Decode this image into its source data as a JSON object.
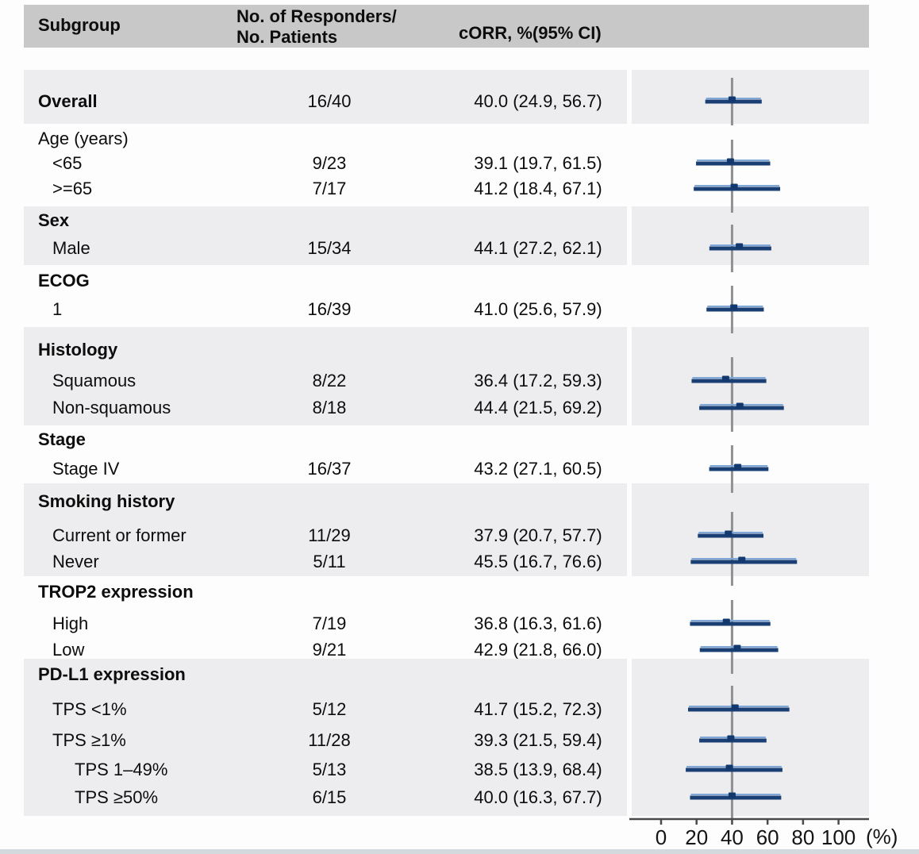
{
  "header": {
    "col_subgroup": "Subgroup",
    "col_responders_line1": "No. of Responders/",
    "col_responders_line2": "No. Patients",
    "col_corr": "cORR, %(95% CI)"
  },
  "axis": {
    "ticks": [
      0,
      20,
      40,
      60,
      80,
      100
    ],
    "unit": "(%)",
    "min": 0,
    "max": 100,
    "ref_value": 40
  },
  "colors": {
    "header_bg": "#c8c8c8",
    "band_bg": "#ededef",
    "ci_bar": "#1a3f74",
    "ci_highlight": "#7fa8d8",
    "marker": "#12386e",
    "ref_line": "#8f9295",
    "axis_line": "#4a4a4a",
    "text": "#0d0d0d"
  },
  "groups": [
    {
      "shaded": true,
      "header": null,
      "rows": [
        {
          "label": "Overall",
          "bold": true,
          "indent": 0,
          "responders": "16/40",
          "corr": "40.0 (24.9, 56.7)",
          "est": 40.0,
          "lo": 24.9,
          "hi": 56.7
        }
      ]
    },
    {
      "shaded": false,
      "header": {
        "label": "Age (years)",
        "bold": false
      },
      "rows": [
        {
          "label": "<65",
          "indent": 1,
          "responders": "9/23",
          "corr": "39.1 (19.7, 61.5)",
          "est": 39.1,
          "lo": 19.7,
          "hi": 61.5
        },
        {
          "label": ">=65",
          "indent": 1,
          "responders": "7/17",
          "corr": "41.2 (18.4, 67.1)",
          "est": 41.2,
          "lo": 18.4,
          "hi": 67.1
        }
      ]
    },
    {
      "shaded": true,
      "header": {
        "label": "Sex",
        "bold": true
      },
      "rows": [
        {
          "label": "Male",
          "indent": 1,
          "responders": "15/34",
          "corr": "44.1 (27.2, 62.1)",
          "est": 44.1,
          "lo": 27.2,
          "hi": 62.1
        }
      ]
    },
    {
      "shaded": false,
      "header": {
        "label": "ECOG",
        "bold": true
      },
      "rows": [
        {
          "label": "1",
          "indent": 1,
          "responders": "16/39",
          "corr": "41.0 (25.6, 57.9)",
          "est": 41.0,
          "lo": 25.6,
          "hi": 57.9
        }
      ]
    },
    {
      "shaded": true,
      "header": {
        "label": "Histology",
        "bold": true
      },
      "rows": [
        {
          "label": "Squamous",
          "indent": 1,
          "responders": "8/22",
          "corr": "36.4 (17.2, 59.3)",
          "est": 36.4,
          "lo": 17.2,
          "hi": 59.3
        },
        {
          "label": "Non-squamous",
          "indent": 1,
          "responders": "8/18",
          "corr": "44.4 (21.5, 69.2)",
          "est": 44.4,
          "lo": 21.5,
          "hi": 69.2
        }
      ]
    },
    {
      "shaded": false,
      "header": {
        "label": "Stage",
        "bold": true
      },
      "rows": [
        {
          "label": "Stage IV",
          "indent": 1,
          "responders": "16/37",
          "corr": "43.2 (27.1, 60.5)",
          "est": 43.2,
          "lo": 27.1,
          "hi": 60.5
        }
      ]
    },
    {
      "shaded": true,
      "header": {
        "label": "Smoking history",
        "bold": true
      },
      "rows": [
        {
          "label": "Current or former",
          "indent": 1,
          "responders": "11/29",
          "corr": "37.9 (20.7, 57.7)",
          "est": 37.9,
          "lo": 20.7,
          "hi": 57.7
        },
        {
          "label": "Never",
          "indent": 1,
          "responders": "5/11",
          "corr": "45.5 (16.7, 76.6)",
          "est": 45.5,
          "lo": 16.7,
          "hi": 76.6
        }
      ]
    },
    {
      "shaded": false,
      "header": {
        "label": "TROP2 expression",
        "bold": true
      },
      "rows": [
        {
          "label": "High",
          "indent": 1,
          "responders": "7/19",
          "corr": "36.8 (16.3, 61.6)",
          "est": 36.8,
          "lo": 16.3,
          "hi": 61.6
        },
        {
          "label": "Low",
          "indent": 1,
          "responders": "9/21",
          "corr": "42.9 (21.8, 66.0)",
          "est": 42.9,
          "lo": 21.8,
          "hi": 66.0
        }
      ]
    },
    {
      "shaded": true,
      "header": {
        "label": "PD-L1 expression",
        "bold": true
      },
      "rows": [
        {
          "label": "TPS <1%",
          "indent": 1,
          "responders": "5/12",
          "corr": "41.7 (15.2, 72.3)",
          "est": 41.7,
          "lo": 15.2,
          "hi": 72.3
        },
        {
          "label": "TPS ≥1%",
          "indent": 1,
          "responders": "11/28",
          "corr": "39.3 (21.5, 59.4)",
          "est": 39.3,
          "lo": 21.5,
          "hi": 59.4
        },
        {
          "label": "TPS 1–49%",
          "indent": 2,
          "responders": "5/13",
          "corr": "38.5 (13.9, 68.4)",
          "est": 38.5,
          "lo": 13.9,
          "hi": 68.4
        },
        {
          "label": "TPS ≥50%",
          "indent": 2,
          "responders": "6/15",
          "corr": "40.0 (16.3, 67.7)",
          "est": 40.0,
          "lo": 16.3,
          "hi": 67.7
        }
      ]
    }
  ],
  "chart_data": {
    "type": "scatter",
    "subtype": "forest-plot",
    "title": "",
    "xlabel": "(%)",
    "xlim": [
      0,
      100
    ],
    "x_ticks": [
      0,
      20,
      40,
      60,
      80,
      100
    ],
    "reference_line_x": 40,
    "legend": null,
    "grid": false,
    "points": [
      {
        "subgroup": "Overall",
        "n": "16/40",
        "est": 40.0,
        "ci": [
          24.9,
          56.7
        ]
      },
      {
        "subgroup": "<65",
        "n": "9/23",
        "est": 39.1,
        "ci": [
          19.7,
          61.5
        ]
      },
      {
        "subgroup": ">=65",
        "n": "7/17",
        "est": 41.2,
        "ci": [
          18.4,
          67.1
        ]
      },
      {
        "subgroup": "Male",
        "n": "15/34",
        "est": 44.1,
        "ci": [
          27.2,
          62.1
        ]
      },
      {
        "subgroup": "ECOG 1",
        "n": "16/39",
        "est": 41.0,
        "ci": [
          25.6,
          57.9
        ]
      },
      {
        "subgroup": "Squamous",
        "n": "8/22",
        "est": 36.4,
        "ci": [
          17.2,
          59.3
        ]
      },
      {
        "subgroup": "Non-squamous",
        "n": "8/18",
        "est": 44.4,
        "ci": [
          21.5,
          69.2
        ]
      },
      {
        "subgroup": "Stage IV",
        "n": "16/37",
        "est": 43.2,
        "ci": [
          27.1,
          60.5
        ]
      },
      {
        "subgroup": "Current or former",
        "n": "11/29",
        "est": 37.9,
        "ci": [
          20.7,
          57.7
        ]
      },
      {
        "subgroup": "Never",
        "n": "5/11",
        "est": 45.5,
        "ci": [
          16.7,
          76.6
        ]
      },
      {
        "subgroup": "TROP2 High",
        "n": "7/19",
        "est": 36.8,
        "ci": [
          16.3,
          61.6
        ]
      },
      {
        "subgroup": "TROP2 Low",
        "n": "9/21",
        "est": 42.9,
        "ci": [
          21.8,
          66.0
        ]
      },
      {
        "subgroup": "TPS <1%",
        "n": "5/12",
        "est": 41.7,
        "ci": [
          15.2,
          72.3
        ]
      },
      {
        "subgroup": "TPS ≥1%",
        "n": "11/28",
        "est": 39.3,
        "ci": [
          21.5,
          59.4
        ]
      },
      {
        "subgroup": "TPS 1–49%",
        "n": "5/13",
        "est": 38.5,
        "ci": [
          13.9,
          68.4
        ]
      },
      {
        "subgroup": "TPS ≥50%",
        "n": "6/15",
        "est": 40.0,
        "ci": [
          16.3,
          67.7
        ]
      }
    ]
  }
}
